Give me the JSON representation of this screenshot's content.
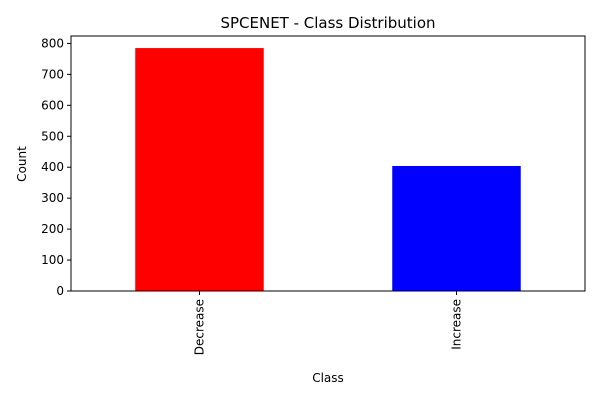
{
  "chart_data": {
    "type": "bar",
    "title": "SPCENET - Class Distribution",
    "xlabel": "Class",
    "ylabel": "Count",
    "categories": [
      "Decrease",
      "Increase"
    ],
    "values": [
      785,
      404
    ],
    "colors": [
      "#ff0000",
      "#0000ff"
    ],
    "ylim": [
      0,
      824
    ],
    "yticks": [
      0,
      100,
      200,
      300,
      400,
      500,
      600,
      700,
      800
    ],
    "grid": false,
    "legend": "none",
    "xtick_rotation": "vertical"
  }
}
